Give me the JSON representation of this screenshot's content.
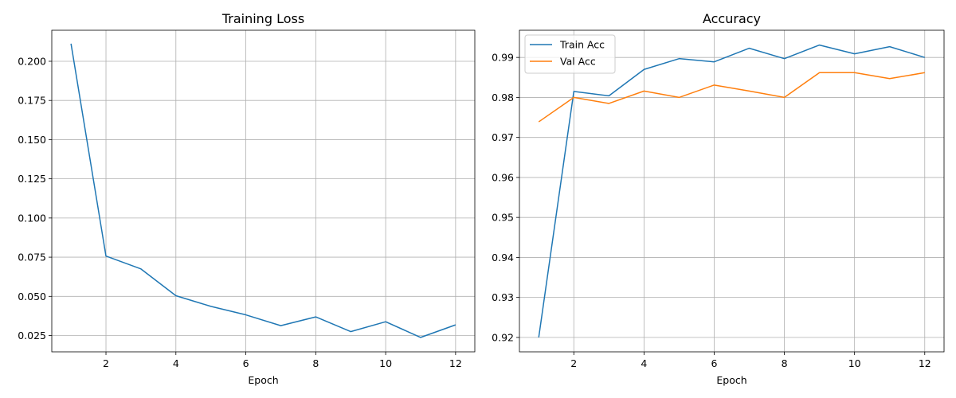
{
  "chart_data": [
    {
      "type": "line",
      "title": "Training Loss",
      "xlabel": "Epoch",
      "ylabel": "",
      "x": [
        1,
        2,
        3,
        4,
        5,
        6,
        7,
        8,
        9,
        10,
        11,
        12
      ],
      "xticks": [
        2,
        4,
        6,
        8,
        10,
        12
      ],
      "yticks": [
        0.025,
        0.05,
        0.075,
        0.1,
        0.125,
        0.15,
        0.175,
        0.2
      ],
      "ytick_labels": [
        "0.025",
        "0.050",
        "0.075",
        "0.100",
        "0.125",
        "0.150",
        "0.175",
        "0.200"
      ],
      "xlim": [
        0.45,
        12.55
      ],
      "ylim": [
        0.0146,
        0.2198
      ],
      "grid": true,
      "legend": null,
      "series": [
        {
          "color": "#1f77b4",
          "values": [
            0.2112,
            0.0757,
            0.0675,
            0.0504,
            0.0436,
            0.0382,
            0.0313,
            0.0369,
            0.0275,
            0.0338,
            0.0238,
            0.0318
          ]
        }
      ]
    },
    {
      "type": "line",
      "title": "Accuracy",
      "xlabel": "Epoch",
      "ylabel": "",
      "x": [
        1,
        2,
        3,
        4,
        5,
        6,
        7,
        8,
        9,
        10,
        11,
        12
      ],
      "xticks": [
        2,
        4,
        6,
        8,
        10,
        12
      ],
      "yticks": [
        0.92,
        0.93,
        0.94,
        0.95,
        0.96,
        0.97,
        0.98,
        0.99
      ],
      "ytick_labels": [
        "0.92",
        "0.93",
        "0.94",
        "0.95",
        "0.96",
        "0.97",
        "0.98",
        "0.99"
      ],
      "xlim": [
        0.45,
        12.55
      ],
      "ylim": [
        0.9164,
        0.9968
      ],
      "grid": true,
      "legend": "top-left",
      "series": [
        {
          "name": "Train Acc",
          "color": "#1f77b4",
          "values": [
            0.92,
            0.9815,
            0.9804,
            0.987,
            0.9897,
            0.9889,
            0.9923,
            0.9897,
            0.9931,
            0.9909,
            0.9927,
            0.99
          ]
        },
        {
          "name": "Val Acc",
          "color": "#ff7f0e",
          "values": [
            0.9739,
            0.98,
            0.9785,
            0.9816,
            0.98,
            0.9831,
            0.9816,
            0.98,
            0.9862,
            0.9862,
            0.9847,
            0.9862
          ]
        }
      ]
    }
  ]
}
